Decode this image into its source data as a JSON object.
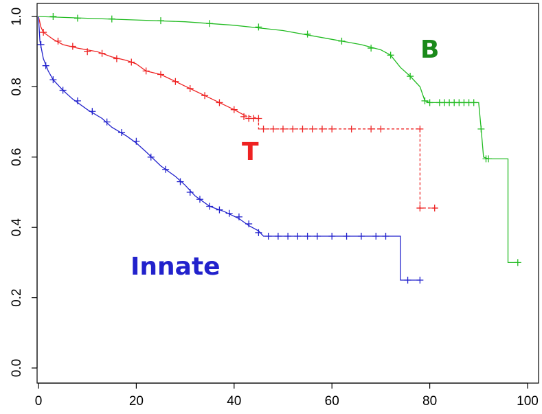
{
  "chart_data": {
    "type": "line",
    "title": "",
    "xlabel": "",
    "ylabel": "",
    "xlim": [
      0,
      100
    ],
    "ylim": [
      0,
      1.0
    ],
    "x_ticks": [
      "0",
      "20",
      "40",
      "60",
      "80",
      "100"
    ],
    "y_ticks": [
      "0.0",
      "0.2",
      "0.4",
      "0.6",
      "0.8",
      "1.0"
    ],
    "grid": false,
    "series": [
      {
        "name": "B",
        "color": "#22bb22",
        "dashed_tail_from": null,
        "points": [
          [
            0,
            1.0
          ],
          [
            10,
            0.995
          ],
          [
            20,
            0.99
          ],
          [
            30,
            0.985
          ],
          [
            40,
            0.975
          ],
          [
            50,
            0.96
          ],
          [
            60,
            0.935
          ],
          [
            66,
            0.92
          ],
          [
            70,
            0.905
          ],
          [
            72,
            0.89
          ],
          [
            74,
            0.855
          ],
          [
            76,
            0.83
          ],
          [
            78,
            0.8
          ],
          [
            79,
            0.76
          ],
          [
            80,
            0.755
          ],
          [
            90,
            0.755
          ],
          [
            90.5,
            0.68
          ],
          [
            91,
            0.6
          ],
          [
            92,
            0.595
          ],
          [
            96,
            0.595
          ],
          [
            96,
            0.3
          ],
          [
            98,
            0.3
          ]
        ],
        "censored": [
          [
            3,
            1.0
          ],
          [
            8,
            0.995
          ],
          [
            15,
            0.993
          ],
          [
            25,
            0.988
          ],
          [
            35,
            0.98
          ],
          [
            45,
            0.97
          ],
          [
            55,
            0.95
          ],
          [
            62,
            0.93
          ],
          [
            68,
            0.91
          ],
          [
            72,
            0.89
          ],
          [
            76,
            0.83
          ],
          [
            79,
            0.76
          ],
          [
            80,
            0.755
          ],
          [
            82,
            0.755
          ],
          [
            83,
            0.755
          ],
          [
            84,
            0.755
          ],
          [
            85,
            0.755
          ],
          [
            86,
            0.755
          ],
          [
            87,
            0.755
          ],
          [
            88,
            0.755
          ],
          [
            89,
            0.755
          ],
          [
            90.5,
            0.68
          ],
          [
            91.5,
            0.595
          ],
          [
            92,
            0.595
          ],
          [
            98,
            0.3
          ]
        ]
      },
      {
        "name": "T",
        "color": "#ee2222",
        "dashed_tail_from": 45,
        "points": [
          [
            0,
            1.0
          ],
          [
            0.5,
            0.97
          ],
          [
            1,
            0.955
          ],
          [
            3,
            0.935
          ],
          [
            5,
            0.92
          ],
          [
            8,
            0.91
          ],
          [
            12,
            0.9
          ],
          [
            15,
            0.885
          ],
          [
            18,
            0.875
          ],
          [
            20,
            0.865
          ],
          [
            22,
            0.845
          ],
          [
            25,
            0.835
          ],
          [
            28,
            0.815
          ],
          [
            31,
            0.795
          ],
          [
            34,
            0.775
          ],
          [
            37,
            0.755
          ],
          [
            40,
            0.735
          ],
          [
            42,
            0.72
          ],
          [
            45,
            0.71
          ],
          [
            45,
            0.68
          ],
          [
            78,
            0.68
          ],
          [
            78,
            0.455
          ],
          [
            81,
            0.455
          ]
        ],
        "censored": [
          [
            1,
            0.955
          ],
          [
            4,
            0.93
          ],
          [
            7,
            0.915
          ],
          [
            10,
            0.9
          ],
          [
            13,
            0.895
          ],
          [
            16,
            0.88
          ],
          [
            19,
            0.87
          ],
          [
            22,
            0.845
          ],
          [
            25,
            0.835
          ],
          [
            28,
            0.815
          ],
          [
            31,
            0.795
          ],
          [
            34,
            0.775
          ],
          [
            37,
            0.755
          ],
          [
            40,
            0.735
          ],
          [
            42,
            0.715
          ],
          [
            43,
            0.71
          ],
          [
            44,
            0.71
          ],
          [
            45,
            0.71
          ],
          [
            46,
            0.68
          ],
          [
            48,
            0.68
          ],
          [
            50,
            0.68
          ],
          [
            52,
            0.68
          ],
          [
            54,
            0.68
          ],
          [
            56,
            0.68
          ],
          [
            58,
            0.68
          ],
          [
            60,
            0.68
          ],
          [
            64,
            0.68
          ],
          [
            68,
            0.68
          ],
          [
            70,
            0.68
          ],
          [
            78,
            0.68
          ],
          [
            78,
            0.455
          ],
          [
            81,
            0.455
          ]
        ]
      },
      {
        "name": "Innate",
        "color": "#2222cc",
        "dashed_tail_from": null,
        "points": [
          [
            0,
            1.0
          ],
          [
            0.3,
            0.93
          ],
          [
            1,
            0.88
          ],
          [
            2,
            0.845
          ],
          [
            3,
            0.82
          ],
          [
            5,
            0.79
          ],
          [
            7,
            0.765
          ],
          [
            10,
            0.735
          ],
          [
            13,
            0.71
          ],
          [
            15,
            0.685
          ],
          [
            18,
            0.66
          ],
          [
            20,
            0.64
          ],
          [
            22,
            0.615
          ],
          [
            25,
            0.575
          ],
          [
            28,
            0.545
          ],
          [
            30,
            0.52
          ],
          [
            32,
            0.49
          ],
          [
            35,
            0.46
          ],
          [
            38,
            0.445
          ],
          [
            41,
            0.425
          ],
          [
            43,
            0.405
          ],
          [
            45,
            0.39
          ],
          [
            46,
            0.375
          ],
          [
            60,
            0.375
          ],
          [
            74,
            0.375
          ],
          [
            74,
            0.25
          ],
          [
            78,
            0.25
          ]
        ],
        "censored": [
          [
            0.5,
            0.92
          ],
          [
            1.5,
            0.86
          ],
          [
            3,
            0.82
          ],
          [
            5,
            0.79
          ],
          [
            8,
            0.76
          ],
          [
            11,
            0.73
          ],
          [
            14,
            0.7
          ],
          [
            17,
            0.67
          ],
          [
            20,
            0.645
          ],
          [
            23,
            0.6
          ],
          [
            26,
            0.565
          ],
          [
            29,
            0.53
          ],
          [
            31,
            0.5
          ],
          [
            33,
            0.48
          ],
          [
            35,
            0.46
          ],
          [
            37,
            0.45
          ],
          [
            39,
            0.44
          ],
          [
            41,
            0.43
          ],
          [
            43,
            0.41
          ],
          [
            45,
            0.385
          ],
          [
            47,
            0.375
          ],
          [
            49,
            0.375
          ],
          [
            51,
            0.375
          ],
          [
            53,
            0.375
          ],
          [
            55,
            0.375
          ],
          [
            57,
            0.375
          ],
          [
            60,
            0.375
          ],
          [
            63,
            0.375
          ],
          [
            66,
            0.375
          ],
          [
            69,
            0.375
          ],
          [
            71,
            0.375
          ],
          [
            75.5,
            0.25
          ],
          [
            78,
            0.25
          ]
        ]
      }
    ],
    "annotations": [
      {
        "text": "B",
        "series": "B"
      },
      {
        "text": "T",
        "series": "T"
      },
      {
        "text": "Innate",
        "series": "Innate"
      }
    ]
  }
}
